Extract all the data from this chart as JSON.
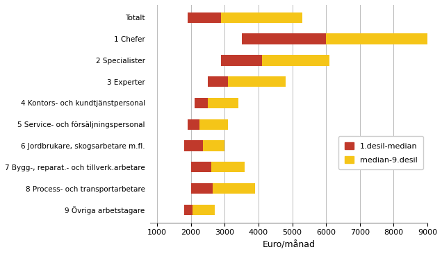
{
  "categories": [
    "9 Övriga arbetstagare",
    "8 Process- och transportarbetare",
    "7 Bygg-, reparat.- och tillverk.arbetare",
    "6 Jordbrukare, skogsarbetare m.fl.",
    "5 Service- och försäljningspersonal",
    "4 Kontors- och kundtjänstpersonal",
    "3 Experter",
    "2 Specialister",
    "1 Chefer",
    "Totalt"
  ],
  "desil1": [
    1800,
    2000,
    2000,
    1800,
    1900,
    2100,
    2500,
    2900,
    3500,
    1900
  ],
  "median": [
    2050,
    2650,
    2600,
    2350,
    2250,
    2500,
    3100,
    4100,
    6000,
    2900
  ],
  "desil9": [
    2700,
    3900,
    3600,
    3000,
    3100,
    3400,
    4800,
    6100,
    9000,
    5300
  ],
  "color_red": "#C0392B",
  "color_yellow": "#F5C518",
  "xlabel": "Euro/månad",
  "xlim_min": 800,
  "xlim_max": 9000,
  "xticks": [
    1000,
    2000,
    3000,
    4000,
    5000,
    6000,
    7000,
    8000,
    9000
  ],
  "legend_label_red": "1.desil-median",
  "legend_label_yellow": "median-9.desil",
  "grid_color": "#BBBBBB",
  "background_color": "#FFFFFF",
  "bar_height": 0.5
}
